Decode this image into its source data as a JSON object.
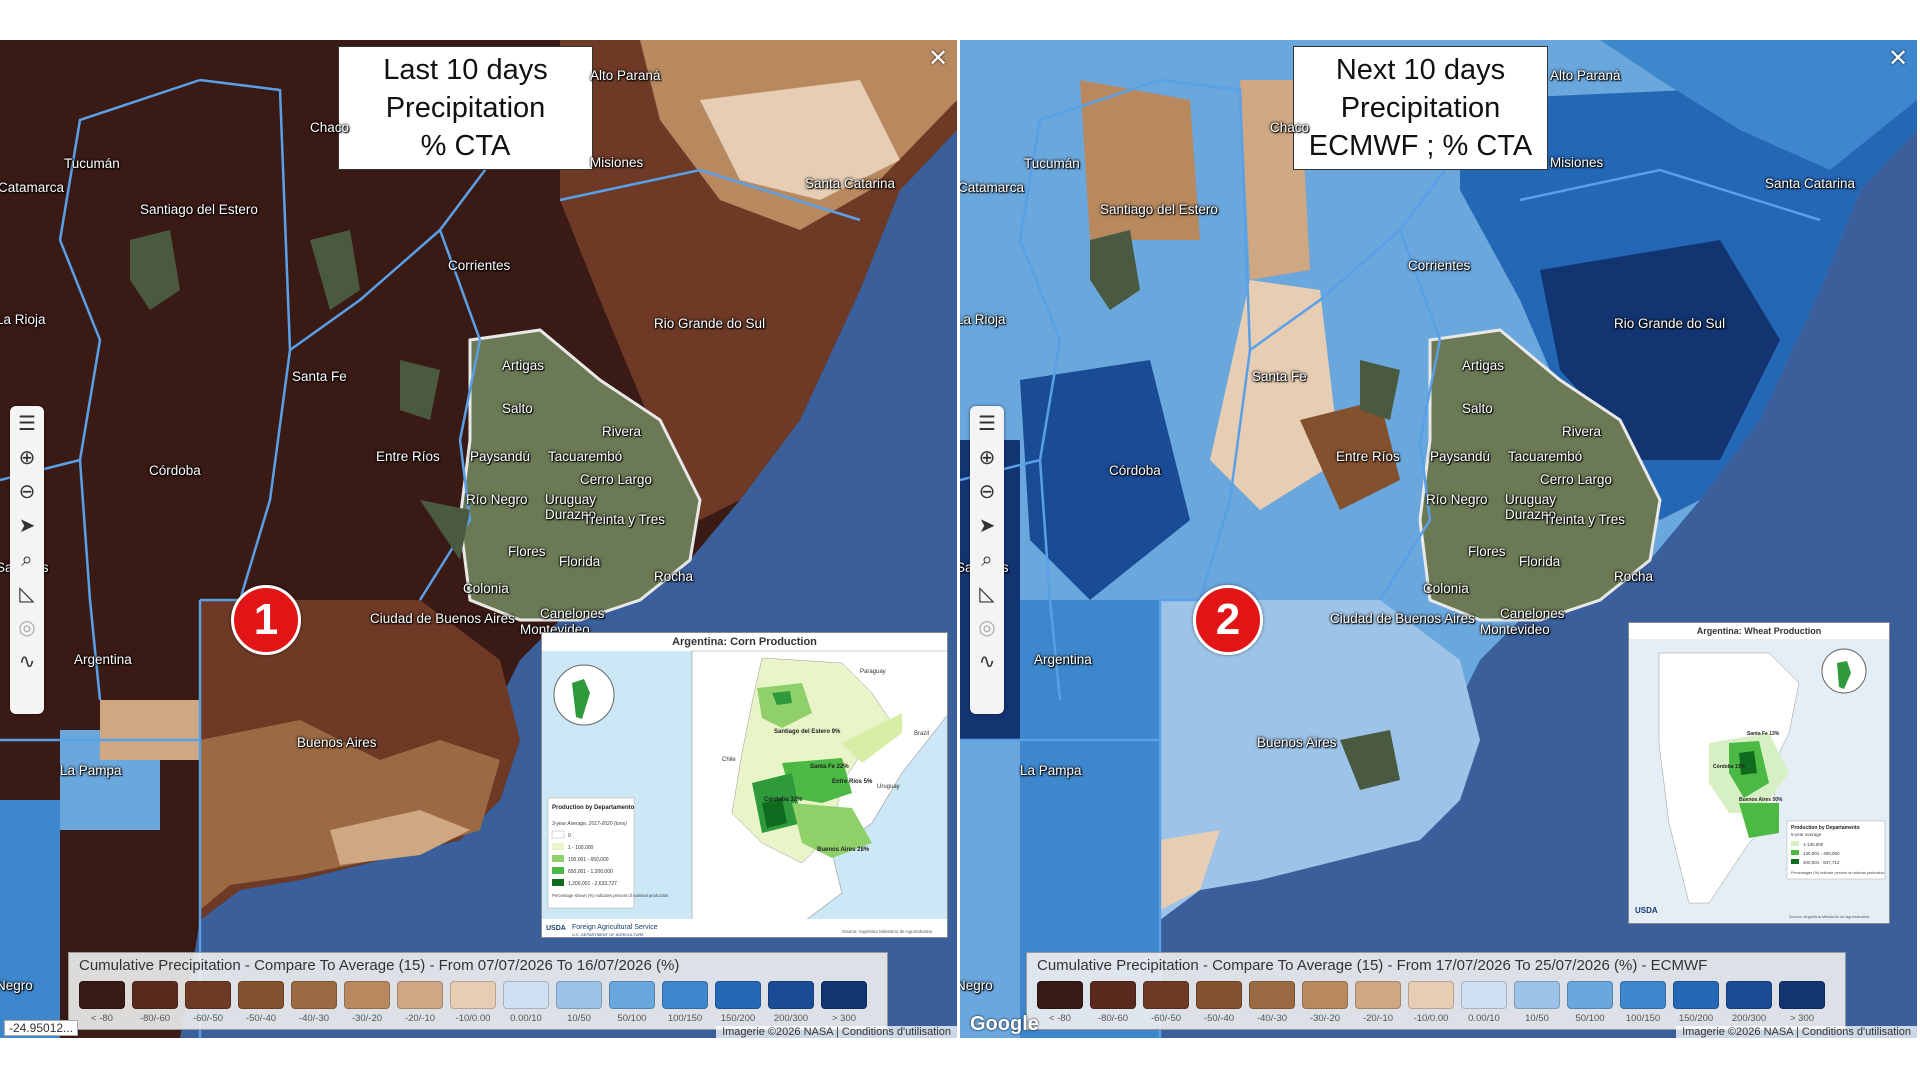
{
  "panels": [
    {
      "id": "left",
      "title_lines": [
        "Last 10 days",
        "Precipitation",
        "% CTA"
      ],
      "badge": "1",
      "legend_title": "Cumulative Precipitation - Compare To Average (15) - From 07/07/2026 To 16/07/2026 (%)",
      "attribution": "Imagerie ©2026 NASA | Conditions d'utilisation",
      "coordinate_readout": "-24.95012...",
      "inset": {
        "title": "Argentina: Corn Production",
        "legend_heading": "Production by Departamento",
        "legend_sub": "3-year Average, 2017-2020 (tons)",
        "legend_items": [
          "0",
          "1 - 100,000",
          "100,001 - 650,000",
          "650,001 - 1,200,000",
          "1,200,001 - 2,633,727"
        ],
        "legend_note": "Percentage shown (%) indicates percent of national production",
        "province_labels": [
          "Santiago del Estero 9%",
          "Santa Fe 22%",
          "Entre Ríos 5%",
          "Córdoba 32%",
          "Buenos Aires 28%"
        ],
        "country_labels": [
          "Paraguay",
          "Brazil",
          "Uruguay",
          "Chile"
        ],
        "source": "Source: Argentina Ministerio de Agroindustria",
        "agency": "Foreign Agricultural Service",
        "agency_sub": "U.S. DEPARTMENT OF AGRICULTURE",
        "usda": "USDA"
      }
    },
    {
      "id": "right",
      "title_lines": [
        "Next 10 days",
        "Precipitation",
        "ECMWF ; % CTA"
      ],
      "badge": "2",
      "legend_title": "Cumulative Precipitation - Compare To Average (15) - From 17/07/2026 To 25/07/2026 (%) - ECMWF",
      "attribution": "Imagerie ©2026 NASA | Conditions d'utilisation",
      "google": "Google",
      "inset": {
        "title": "Argentina: Wheat Production",
        "legend_heading": "Production by Departamento",
        "legend_sub": "5-year average",
        "legend_items": [
          "1-130,000",
          "130,001 - 400,000",
          "400,001 - 847,712"
        ],
        "legend_note": "Percentages (%) indicate percent of national production",
        "province_labels": [
          "Santa Fe 13%",
          "Córdoba 13%",
          "Buenos Aires 50%"
        ],
        "source": "Source: Argentina Ministerio de Agroindustria",
        "usda": "USDA"
      }
    }
  ],
  "legend_classes": [
    {
      "label": "< -80",
      "color": "#3a1a14"
    },
    {
      "label": "-80/-60",
      "color": "#5a2a1e"
    },
    {
      "label": "-60/-50",
      "color": "#6e3a26"
    },
    {
      "label": "-50/-40",
      "color": "#84512f"
    },
    {
      "label": "-40/-30",
      "color": "#9b6a42"
    },
    {
      "label": "-30/-20",
      "color": "#b8895e"
    },
    {
      "label": "-20/-10",
      "color": "#cfa783"
    },
    {
      "label": "-10/0.00",
      "color": "#e6cdb3"
    },
    {
      "label": "0.00/10",
      "color": "#cfe0f2"
    },
    {
      "label": "10/50",
      "color": "#9dc4e8"
    },
    {
      "label": "50/100",
      "color": "#6aa7dd"
    },
    {
      "label": "100/150",
      "color": "#3e87cc"
    },
    {
      "label": "150/200",
      "color": "#2467b5"
    },
    {
      "label": "200/300",
      "color": "#1a4c96"
    },
    {
      "label": "> 300",
      "color": "#123572"
    }
  ],
  "place_labels": {
    "left": [
      {
        "name": "Alto Paraná"
      },
      {
        "name": "Misiones"
      },
      {
        "name": "Santa Catarina"
      },
      {
        "name": "Tucumán"
      },
      {
        "name": "Catamarca"
      },
      {
        "name": "Santiago del Estero"
      },
      {
        "name": "Corrientes"
      },
      {
        "name": "La Rioja"
      },
      {
        "name": "Rio Grande do Sul"
      },
      {
        "name": "Artigas"
      },
      {
        "name": "Santa Fe"
      },
      {
        "name": "Salto"
      },
      {
        "name": "Rivera"
      },
      {
        "name": "Córdoba"
      },
      {
        "name": "Entre Ríos"
      },
      {
        "name": "Paysandú"
      },
      {
        "name": "Tacuarembó"
      },
      {
        "name": "Cerro Largo"
      },
      {
        "name": "Río Negro"
      },
      {
        "name": "Uruguay"
      },
      {
        "name": "Durazno"
      },
      {
        "name": "Treinta y Tres"
      },
      {
        "name": "Flores"
      },
      {
        "name": "Florida"
      },
      {
        "name": "San Luis"
      },
      {
        "name": "Colonia"
      },
      {
        "name": "Rocha"
      },
      {
        "name": "Ciudad de Buenos Aires"
      },
      {
        "name": "Canelones"
      },
      {
        "name": "Montevideo"
      },
      {
        "name": "Argentina"
      },
      {
        "name": "Buenos Aires"
      },
      {
        "name": "La Pampa"
      },
      {
        "name": "Chaco"
      },
      {
        "name": "Negro"
      }
    ],
    "right": [
      {
        "name": "Alto Paraná"
      },
      {
        "name": "Misiones"
      },
      {
        "name": "Santa Catarina"
      },
      {
        "name": "Tucumán"
      },
      {
        "name": "Catamarca"
      },
      {
        "name": "Santiago del Estero"
      },
      {
        "name": "Corrientes"
      },
      {
        "name": "La Rioja"
      },
      {
        "name": "Rio Grande do Sul"
      },
      {
        "name": "Artigas"
      },
      {
        "name": "Santa Fe"
      },
      {
        "name": "Salto"
      },
      {
        "name": "Rivera"
      },
      {
        "name": "Córdoba"
      },
      {
        "name": "Entre Ríos"
      },
      {
        "name": "Paysandú"
      },
      {
        "name": "Tacuarembó"
      },
      {
        "name": "Cerro Largo"
      },
      {
        "name": "Río Negro"
      },
      {
        "name": "Uruguay"
      },
      {
        "name": "Durazno"
      },
      {
        "name": "Treinta y Tres"
      },
      {
        "name": "Flores"
      },
      {
        "name": "Florida"
      },
      {
        "name": "San Luis"
      },
      {
        "name": "Colonia"
      },
      {
        "name": "Rocha"
      },
      {
        "name": "Ciudad de Buenos Aires"
      },
      {
        "name": "Canelones"
      },
      {
        "name": "Montevideo"
      },
      {
        "name": "Argentina"
      },
      {
        "name": "Buenos Aires"
      },
      {
        "name": "La Pampa"
      },
      {
        "name": "Chaco"
      },
      {
        "name": "Negro"
      }
    ]
  },
  "toolbar_icons": [
    "layers-icon",
    "zoom-in-icon",
    "zoom-out-icon",
    "locate-icon",
    "search-icon",
    "measure-icon",
    "compass-icon",
    "draw-icon"
  ],
  "colors": {
    "ocean": "#3b5f9a",
    "land_dry": "#3a1a14",
    "uruguay_terrain": "#6b7a55",
    "badge": "#e11515",
    "border": "#5aa0e8"
  }
}
